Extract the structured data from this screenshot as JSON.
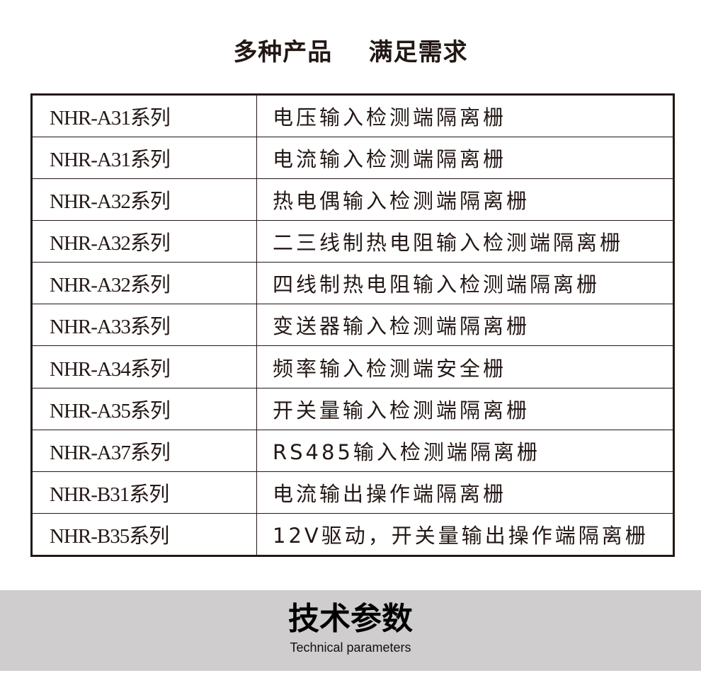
{
  "title": "多种产品    满足需求",
  "products": [
    {
      "model": "NHR-A31系列",
      "description": "电压输入检测端隔离栅"
    },
    {
      "model": "NHR-A31系列",
      "description": "电流输入检测端隔离栅"
    },
    {
      "model": "NHR-A32系列",
      "description": "热电偶输入检测端隔离栅"
    },
    {
      "model": "NHR-A32系列",
      "description": "二三线制热电阻输入检测端隔离栅"
    },
    {
      "model": "NHR-A32系列",
      "description": "四线制热电阻输入检测端隔离栅"
    },
    {
      "model": "NHR-A33系列",
      "description": "变送器输入检测端隔离栅"
    },
    {
      "model": "NHR-A34系列",
      "description": "频率输入检测端安全栅"
    },
    {
      "model": "NHR-A35系列",
      "description": "开关量输入检测端隔离栅"
    },
    {
      "model": "NHR-A37系列",
      "description": "RS485输入检测端隔离栅"
    },
    {
      "model": "NHR-B31系列",
      "description": "电流输出操作端隔离栅"
    },
    {
      "model": "NHR-B35系列",
      "description": "12V驱动，开关量输出操作端隔离栅"
    }
  ],
  "section": {
    "title": "技术参数",
    "subtitle": "Technical parameters"
  }
}
